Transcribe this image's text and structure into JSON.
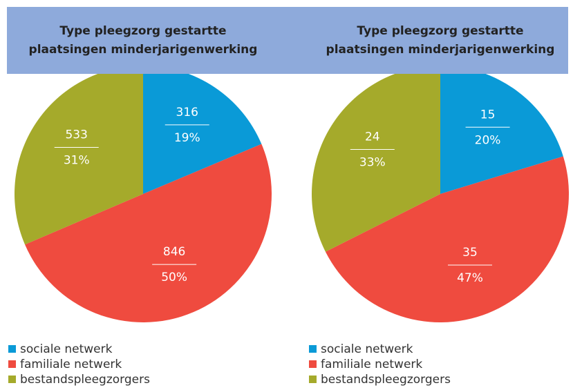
{
  "chart_data": [
    {
      "type": "pie",
      "title": "Type pleegzorg gestartte plaatsingen minderjarigenwerking",
      "categories": [
        "sociale netwerk",
        "familiale netwerk",
        "bestandspleegzorgers"
      ],
      "values": [
        316,
        846,
        533
      ],
      "percent_labels": [
        "19%",
        "50%",
        "31%"
      ],
      "colors": [
        "#0a9ad7",
        "#ef4b3f",
        "#a5aa2b"
      ]
    },
    {
      "type": "pie",
      "title": "Type pleegzorg gestartte plaatsingen minderjarigenwerking",
      "categories": [
        "sociale netwerk",
        "familiale netwerk",
        "bestandspleegzorgers"
      ],
      "values": [
        15,
        35,
        24
      ],
      "percent_labels": [
        "20%",
        "47%",
        "33%"
      ],
      "colors": [
        "#0a9ad7",
        "#ef4b3f",
        "#a5aa2b"
      ]
    }
  ]
}
